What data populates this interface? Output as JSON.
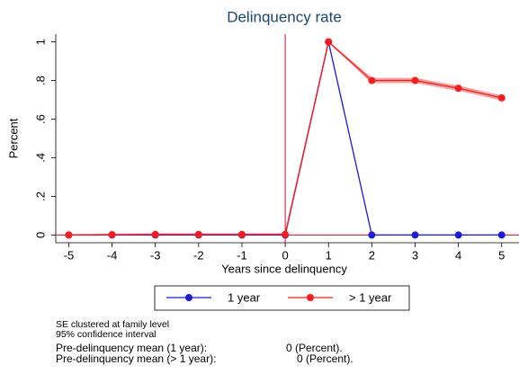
{
  "chart_data": {
    "type": "line",
    "title": "Delinquency rate",
    "x_label": "Years since delinquency",
    "y_label": "Percent",
    "x": [
      -5,
      -4,
      -3,
      -2,
      -1,
      0,
      1,
      2,
      3,
      4,
      5
    ],
    "series": [
      {
        "name": "1 year",
        "color": "#1a1ae0",
        "values": [
          0,
          0,
          0,
          0,
          0,
          0,
          1,
          0,
          0,
          0,
          0
        ]
      },
      {
        "name": "> 1 year",
        "color": "#ff1a1a",
        "values": [
          0,
          0.002,
          0.003,
          0.003,
          0.003,
          0.003,
          1,
          0.8,
          0.8,
          0.76,
          0.71
        ],
        "ci_lower": [
          0,
          0,
          0,
          0,
          0,
          0,
          1,
          0.79,
          0.79,
          0.75,
          0.7
        ],
        "ci_upper": [
          0,
          0.004,
          0.006,
          0.006,
          0.006,
          0.006,
          1,
          0.81,
          0.81,
          0.77,
          0.72
        ],
        "ci_color": "#f4a6a6"
      }
    ],
    "xlim": [
      -5.3,
      5.4
    ],
    "ylim": [
      -0.04,
      1.04
    ],
    "xticks": [
      -5,
      -4,
      -3,
      -2,
      -1,
      0,
      1,
      2,
      3,
      4,
      5
    ],
    "yticks": [
      0,
      {
        "value": 0.2,
        "label": ".2"
      },
      {
        "value": 0.4,
        "label": ".4"
      },
      {
        "value": 0.6,
        "label": ".6"
      },
      {
        "value": 0.8,
        "label": ".8"
      },
      1
    ],
    "xline": 0,
    "yline": 0,
    "refline_color": "#c8102e",
    "notes": [
      "SE clustered at family level",
      "95% confidence interval"
    ],
    "means": [
      {
        "label": "Pre-delinquency mean (1 year):",
        "value": "0 (Percent)."
      },
      {
        "label": "Pre-delinquency mean (> 1 year):",
        "value": "0 (Percent)."
      }
    ]
  }
}
